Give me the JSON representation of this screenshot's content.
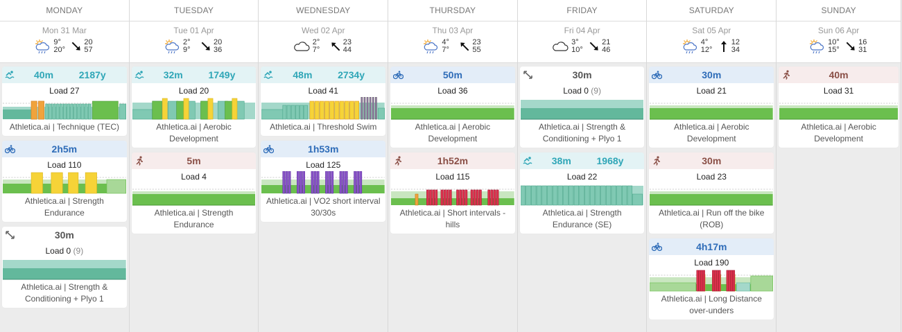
{
  "colors": {
    "swim": "#2fa6b7",
    "bike": "#2e6cb8",
    "run": "#8a4f46"
  },
  "days": [
    {
      "name": "MONDAY",
      "date": "Mon 31 Mar",
      "weather": {
        "icon": "sun-cloud-rain-icon",
        "t1": "9°",
        "t2": "20°",
        "w1": "20",
        "w2": "57",
        "wind_dir": "southeast"
      },
      "workouts": [
        {
          "sport": "swim",
          "icon": "swim-icon",
          "duration": "40m",
          "distance": "2187y",
          "load": "Load 27",
          "load_extra": "",
          "title": "Athletica.ai | Technique (TEC)",
          "chart": "swim-tec"
        },
        {
          "sport": "bike",
          "icon": "bike-icon",
          "duration": "2h5m",
          "distance": "",
          "load": "Load 110",
          "load_extra": "",
          "title": "Athletica.ai | Strength Endurance",
          "chart": "bike-se"
        },
        {
          "sport": "other",
          "icon": "arrows-icon",
          "duration": "30m",
          "distance": "",
          "load": "Load 0",
          "load_extra": "(9)",
          "title": "Athletica.ai | Strength & Conditioning + Plyo 1",
          "chart": "flat-teal"
        }
      ]
    },
    {
      "name": "TUESDAY",
      "date": "Tue 01 Apr",
      "weather": {
        "icon": "sun-cloud-rain-icon",
        "t1": "2°",
        "t2": "9°",
        "w1": "20",
        "w2": "36",
        "wind_dir": "southeast"
      },
      "workouts": [
        {
          "sport": "swim",
          "icon": "swim-icon",
          "duration": "32m",
          "distance": "1749y",
          "load": "Load 20",
          "load_extra": "",
          "title": "Athletica.ai | Aerobic Development",
          "chart": "swim-aero"
        },
        {
          "sport": "run",
          "icon": "run-icon",
          "duration": "5m",
          "distance": "",
          "load": "Load 4",
          "load_extra": "",
          "title": "Athletica.ai | Strength Endurance",
          "chart": "flat-green"
        }
      ]
    },
    {
      "name": "WEDNESDAY",
      "date": "Wed 02 Apr",
      "weather": {
        "icon": "cloud-icon",
        "t1": "2°",
        "t2": "7°",
        "w1": "23",
        "w2": "44",
        "wind_dir": "northwest"
      },
      "workouts": [
        {
          "sport": "swim",
          "icon": "swim-icon",
          "duration": "48m",
          "distance": "2734y",
          "load": "Load 41",
          "load_extra": "",
          "title": "Athletica.ai | Threshold Swim",
          "chart": "swim-thr"
        },
        {
          "sport": "bike",
          "icon": "bike-icon",
          "duration": "1h53m",
          "distance": "",
          "load": "Load 125",
          "load_extra": "",
          "title": "Athletica.ai | VO2 short interval 30/30s",
          "chart": "bike-vo2"
        }
      ]
    },
    {
      "name": "THURSDAY",
      "date": "Thu 03 Apr",
      "weather": {
        "icon": "sun-cloud-rain-icon",
        "t1": "4°",
        "t2": "7°",
        "w1": "23",
        "w2": "55",
        "wind_dir": "northwest"
      },
      "workouts": [
        {
          "sport": "bike",
          "icon": "bike-icon",
          "duration": "50m",
          "distance": "",
          "load": "Load 36",
          "load_extra": "",
          "title": "Athletica.ai | Aerobic Development",
          "chart": "flat-green"
        },
        {
          "sport": "run",
          "icon": "run-icon",
          "duration": "1h52m",
          "distance": "",
          "load": "Load 115",
          "load_extra": "",
          "title": "Athletica.ai | Short intervals - hills",
          "chart": "run-hills"
        }
      ]
    },
    {
      "name": "FRIDAY",
      "date": "Fri 04 Apr",
      "weather": {
        "icon": "cloud-icon",
        "t1": "3°",
        "t2": "10°",
        "w1": "21",
        "w2": "46",
        "wind_dir": "southeast"
      },
      "workouts": [
        {
          "sport": "other",
          "icon": "arrows-icon",
          "duration": "30m",
          "distance": "",
          "load": "Load 0",
          "load_extra": "(9)",
          "title": "Athletica.ai | Strength & Conditioning + Plyo 1",
          "chart": "flat-teal"
        },
        {
          "sport": "swim",
          "icon": "swim-icon",
          "duration": "38m",
          "distance": "1968y",
          "load": "Load 22",
          "load_extra": "",
          "title": "Athletica.ai | Strength Endurance (SE)",
          "chart": "swim-se"
        }
      ]
    },
    {
      "name": "SATURDAY",
      "date": "Sat 05 Apr",
      "weather": {
        "icon": "sun-cloud-rain-icon",
        "t1": "4°",
        "t2": "12°",
        "w1": "12",
        "w2": "34",
        "wind_dir": "north"
      },
      "workouts": [
        {
          "sport": "bike",
          "icon": "bike-icon",
          "duration": "30m",
          "distance": "",
          "load": "Load 21",
          "load_extra": "",
          "title": "Athletica.ai | Aerobic Development",
          "chart": "flat-green"
        },
        {
          "sport": "run",
          "icon": "run-icon",
          "duration": "30m",
          "distance": "",
          "load": "Load 23",
          "load_extra": "",
          "title": "Athletica.ai | Run off the bike (ROB)",
          "chart": "flat-green"
        },
        {
          "sport": "bike",
          "icon": "bike-icon",
          "duration": "4h17m",
          "distance": "",
          "load": "Load 190",
          "load_extra": "",
          "title": "Athletica.ai | Long Distance over-unders",
          "chart": "bike-ou"
        }
      ]
    },
    {
      "name": "SUNDAY",
      "date": "Sun 06 Apr",
      "weather": {
        "icon": "sun-cloud-rain-icon",
        "t1": "10°",
        "t2": "15°",
        "w1": "16",
        "w2": "31",
        "wind_dir": "southeast"
      },
      "workouts": [
        {
          "sport": "run",
          "icon": "run-icon",
          "duration": "40m",
          "distance": "",
          "load": "Load 31",
          "load_extra": "",
          "title": "Athletica.ai | Aerobic Development",
          "chart": "flat-green"
        }
      ]
    }
  ]
}
